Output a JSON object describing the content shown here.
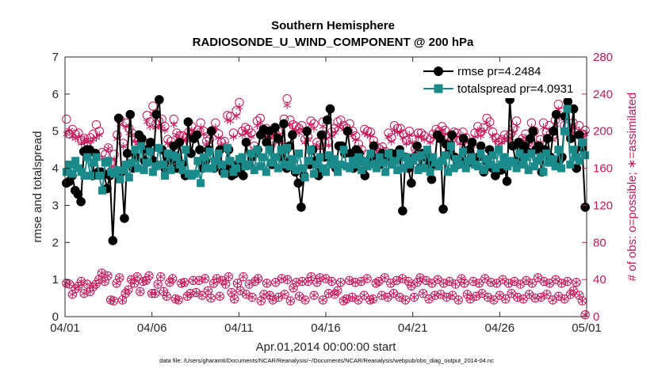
{
  "colors": {
    "rmse": "#000000",
    "spread": "#1a8a8a",
    "obs": "#c8175a",
    "axis_left": "#262626",
    "axis_right": "#c8175a"
  },
  "chart_data": {
    "type": "line",
    "title": "Southern Hemisphere",
    "subtitle": "RADIOSONDE_U_WIND_COMPONENT @ 200 hPa",
    "xlabel": "Apr.01,2014 00:00:00 start",
    "ylabel_left": "rmse and totalspread",
    "ylabel_right": "# of obs: o=possible; ∗=assimilated",
    "xlim": [
      0,
      30
    ],
    "ylim_left": [
      0,
      7
    ],
    "ylim_right": [
      0,
      280
    ],
    "x_ticks": [
      0,
      5,
      10,
      15,
      20,
      25,
      30
    ],
    "x_tick_labels": [
      "04/01",
      "04/06",
      "04/11",
      "04/16",
      "04/21",
      "04/26",
      "05/01"
    ],
    "yleft_ticks": [
      0,
      1,
      2,
      3,
      4,
      5,
      6,
      7
    ],
    "yright_ticks": [
      0,
      40,
      80,
      120,
      160,
      200,
      240,
      280
    ],
    "legend": {
      "location": "top-right",
      "rmse_label": "rmse pr=4.2484",
      "spread_label": "totalspread pr=4.0931"
    },
    "footnote": "data file: /Users/gharamti/Documents/NCAR/Reanalysis/~/Documents/NCAR/Reanalysis/webpub/obs_diag_output_2014-04.nc",
    "series": [
      {
        "name": "rmse",
        "axis": "left",
        "values": [
          3.6,
          3.65,
          3.8,
          3.4,
          3.3,
          3.1,
          4.45,
          4.5,
          4.5,
          3.8,
          4.4,
          3.9,
          3.9,
          3.85,
          3.45,
          3.8,
          2.05,
          3.9,
          5.35,
          3.9,
          2.65,
          4.4,
          5.45,
          4.0,
          4.3,
          4.9,
          4.8,
          4.2,
          4.5,
          4.7,
          4.2,
          5.45,
          5.85,
          4.5,
          4.0,
          4.3,
          4.2,
          4.6,
          4.0,
          4.7,
          4.1,
          3.8,
          5.25,
          4.4,
          4.8,
          4.9,
          4.5,
          4.0,
          4.2,
          4.5,
          5.0,
          4.0,
          4.2,
          4.5,
          3.9,
          4.0,
          4.5,
          3.8,
          3.85,
          4.1,
          3.9,
          3.8,
          4.7,
          4.1,
          4.3,
          4.4,
          4.5,
          4.9,
          5.05,
          4.7,
          5.0,
          4.1,
          5.1,
          4.8,
          4.3,
          5.2,
          4.0,
          4.6,
          4.9,
          3.9,
          3.6,
          2.95,
          3.8,
          5.0,
          4.1,
          4.5,
          4.2,
          3.8,
          4.9,
          4.3,
          5.3,
          5.6,
          4.2,
          4.0,
          4.6,
          4.6,
          4.4,
          5.0,
          4.4,
          4.0,
          4.5,
          4.4,
          4.2,
          3.8,
          4.1,
          4.3,
          4.6,
          4.05,
          4.1,
          4.4,
          4.3,
          4.3,
          4.4,
          4.3,
          4.4,
          4.5,
          2.85,
          4.3,
          4.0,
          3.6,
          4.3,
          4.6,
          4.0,
          4.4,
          4.3,
          4.1,
          3.7,
          4.1,
          4.9,
          4.8,
          2.9,
          4.65,
          4.4,
          4.9,
          4.3,
          4.1,
          4.2,
          4.8,
          4.1,
          4.5,
          4.7,
          4.2,
          4.3,
          4.6,
          3.9,
          4.2,
          4.5,
          4.0,
          3.8,
          4.0,
          3.95,
          4.1,
          3.65,
          5.85,
          4.6,
          4.2,
          4.7,
          4.3,
          4.6,
          4.45,
          4.8,
          5.0,
          4.5,
          4.6,
          3.9,
          4.5,
          4.8,
          4.3,
          5.0,
          5.45,
          4.2,
          4.3,
          5.4,
          5.8,
          4.8,
          5.6,
          4.0,
          4.9,
          4.55,
          2.95
        ]
      },
      {
        "name": "totalspread",
        "axis": "left",
        "values": [
          3.9,
          4.1,
          3.85,
          4.2,
          4.0,
          3.9,
          3.8,
          4.3,
          3.8,
          4.15,
          4.3,
          3.8,
          3.4,
          4.15,
          4.2,
          3.9,
          3.85,
          3.95,
          3.7,
          3.95,
          4.1,
          3.75,
          4.15,
          4.5,
          4.0,
          4.6,
          3.95,
          4.15,
          4.45,
          3.9,
          4.05,
          4.55,
          4.1,
          3.8,
          4.4,
          3.95,
          4.35,
          4.3,
          4.1,
          3.95,
          4.5,
          3.85,
          3.8,
          3.85,
          4.2,
          3.6,
          4.3,
          4.0,
          4.45,
          4.0,
          4.2,
          4.4,
          4.1,
          3.85,
          4.55,
          4.2,
          3.9,
          4.0,
          4.25,
          4.3,
          4.05,
          4.1,
          4.4,
          3.95,
          4.5,
          4.05,
          4.3,
          3.9,
          4.5,
          4.15,
          4.3,
          4.0,
          4.5,
          4.1,
          4.55,
          4.05,
          4.25,
          3.95,
          4.4,
          4.0,
          3.75,
          4.2,
          4.5,
          3.85,
          4.1,
          4.3,
          4.0,
          3.9,
          4.35,
          4.1,
          4.25,
          3.9,
          4.1,
          4.5,
          4.05,
          4.0,
          4.2,
          4.1,
          4.3,
          3.95,
          4.2,
          4.05,
          4.4,
          4.1,
          4.0,
          4.3,
          4.15,
          3.9,
          4.4,
          4.1,
          4.2,
          3.95,
          4.4,
          4.0,
          4.3,
          4.1,
          4.2,
          4.3,
          3.95,
          4.35,
          4.0,
          4.5,
          3.9,
          4.3,
          4.15,
          4.05,
          4.2,
          4.35,
          3.9,
          4.6,
          4.0,
          4.25,
          4.1,
          4.45,
          4.0,
          4.2,
          4.3,
          4.1,
          4.05,
          4.4,
          3.95,
          4.25,
          4.1,
          4.35,
          4.0,
          4.5,
          4.1,
          4.3,
          4.05,
          4.2,
          4.15,
          4.0,
          4.4,
          4.1,
          4.3,
          3.95,
          4.4,
          4.05,
          4.2,
          4.3,
          3.9,
          4.4,
          4.15,
          4.25,
          4.05,
          4.5,
          4.0,
          5.0,
          5.6,
          4.1,
          4.5,
          4.3,
          4.2,
          4.7,
          4.35
        ]
      },
      {
        "name": "obs_possible",
        "axis": "right",
        "values": [
          213,
          197,
          202,
          197,
          198,
          190,
          192,
          188,
          193,
          197,
          207,
          200,
          177,
          175,
          182,
          166,
          175,
          196,
          212,
          187,
          209,
          203,
          198,
          193,
          190,
          188,
          188,
          217,
          210,
          227,
          208,
          211,
          213,
          205,
          191,
          189,
          213,
          198,
          195,
          195,
          193,
          199,
          205,
          196,
          201,
          209,
          200,
          189,
          191,
          201,
          209,
          197,
          188,
          189,
          217,
          216,
          198,
          222,
          231,
          200,
          204,
          202,
          198,
          184,
          211,
          214,
          201,
          203,
          197,
          188,
          198,
          200,
          191,
          213,
          235,
          212,
          207,
          205,
          203,
          206,
          191,
          194,
          211,
          208,
          188,
          185,
          210,
          196,
          188,
          199,
          203,
          210,
          212,
          206,
          203,
          208,
          200,
          195,
          186,
          180,
          202,
          200,
          199,
          190,
          183,
          181,
          183,
          178,
          198,
          193,
          206,
          203,
          203,
          197,
          190,
          200,
          191,
          181,
          198,
          198,
          195,
          177,
          192,
          197,
          202,
          200,
          205,
          201,
          193,
          190,
          199,
          198,
          190,
          199,
          193,
          184,
          187,
          198,
          205,
          199,
          204,
          214,
          210,
          199,
          193,
          188,
          191,
          196,
          193,
          197,
          203,
          211,
          188,
          192,
          197,
          188,
          209,
          200,
          184,
          191,
          209,
          199,
          206,
          194,
          212,
          229,
          221,
          206,
          205,
          196,
          209,
          200,
          206,
          197,
          201
        ]
      },
      {
        "name": "obs_assimilated",
        "axis": "right",
        "values": [
          197,
          201,
          195,
          192,
          194,
          187,
          191,
          188,
          189,
          191,
          193,
          196,
          170,
          170,
          181,
          162,
          169,
          192,
          207,
          184,
          205,
          198,
          196,
          189,
          187,
          186,
          184,
          210,
          205,
          219,
          204,
          206,
          205,
          201,
          187,
          185,
          207,
          196,
          192,
          191,
          190,
          195,
          201,
          192,
          197,
          204,
          197,
          186,
          188,
          197,
          204,
          193,
          185,
          186,
          212,
          211,
          194,
          216,
          226,
          196,
          200,
          198,
          194,
          181,
          206,
          209,
          197,
          198,
          193,
          185,
          194,
          196,
          188,
          208,
          228,
          207,
          202,
          201,
          198,
          202,
          188,
          191,
          207,
          203,
          185,
          182,
          205,
          192,
          185,
          195,
          199,
          205,
          207,
          202,
          199,
          203,
          196,
          191,
          183,
          177,
          198,
          196,
          195,
          187,
          180,
          178,
          180,
          175,
          194,
          189,
          201,
          199,
          199,
          193,
          187,
          196,
          188,
          178,
          194,
          194,
          191,
          174,
          188,
          193,
          198,
          196,
          201,
          197,
          190,
          187,
          195,
          194,
          187,
          195,
          190,
          181,
          184,
          194,
          201,
          195,
          200,
          209,
          205,
          195,
          190,
          185,
          188,
          192,
          190,
          193,
          199,
          206,
          185,
          189,
          193,
          185,
          204,
          196,
          181,
          188,
          204,
          195,
          201,
          191,
          207,
          223,
          215,
          201,
          200,
          192,
          204,
          196,
          201,
          193,
          197
        ]
      },
      {
        "name": "obs_possible_low",
        "axis": "right",
        "values": [
          36,
          35,
          24,
          30,
          33,
          38,
          25,
          35,
          27,
          32,
          35,
          40,
          47,
          38,
          44,
          18,
          17,
          36,
          42,
          18,
          25,
          29,
          40,
          36,
          43,
          27,
          38,
          39,
          44,
          25,
          25,
          35,
          43,
          27,
          22,
          37,
          41,
          19,
          18,
          36,
          37,
          22,
          25,
          39,
          26,
          39,
          23,
          41,
          28,
          20,
          36,
          41,
          22,
          39,
          35,
          43,
          26,
          19,
          36,
          28,
          43,
          24,
          35,
          21,
          38,
          41,
          17,
          24,
          36,
          23,
          18,
          37,
          21,
          41,
          24,
          40,
          17,
          31,
          37,
          22,
          38,
          18,
          38,
          43,
          23,
          37,
          42,
          18,
          41,
          25,
          38,
          24,
          28,
          37,
          17,
          19,
          39,
          21,
          37,
          18,
          38,
          23,
          41,
          18,
          19,
          36,
          38,
          23,
          42,
          21,
          36,
          25,
          39,
          21,
          41,
          18,
          38,
          33,
          21,
          37,
          42,
          25,
          39,
          19,
          36,
          23,
          40,
          24,
          36,
          21,
          38,
          23,
          35,
          18,
          41,
          36,
          24,
          19,
          38,
          22,
          36,
          25,
          41,
          21,
          37,
          18,
          36,
          23,
          40,
          19,
          36,
          25,
          38,
          21,
          35,
          19,
          39,
          24,
          36,
          20,
          42,
          21,
          38,
          24,
          36,
          18,
          40,
          22,
          36,
          19,
          38,
          24,
          28,
          37,
          23,
          17,
          2
        ]
      }
    ]
  }
}
